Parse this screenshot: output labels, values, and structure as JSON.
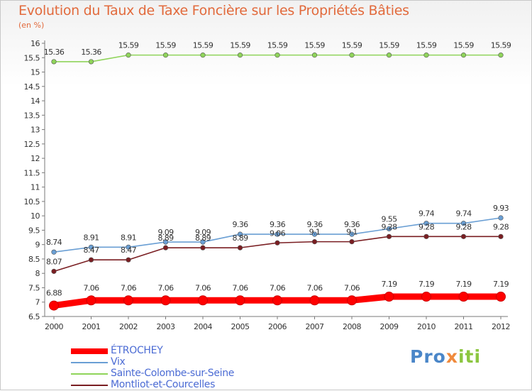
{
  "header": {
    "title": "Evolution du Taux de Taxe Foncière sur les Propriétés Bâties",
    "subtitle": "(en %)"
  },
  "logo": {
    "parts": [
      "Pro",
      "x",
      "iti"
    ]
  },
  "chart_data": {
    "type": "line",
    "x": [
      "2000",
      "2001",
      "2002",
      "2003",
      "2004",
      "2005",
      "2006",
      "2007",
      "2008",
      "2009",
      "2010",
      "2011",
      "2012"
    ],
    "ylim": [
      6.5,
      16
    ],
    "yticks": [
      6.5,
      7,
      7.5,
      8,
      8.5,
      9,
      9.5,
      10,
      10.5,
      11,
      11.5,
      12,
      12.5,
      13,
      13.5,
      14,
      14.5,
      15,
      15.5,
      16
    ],
    "grid": false,
    "legend_position": "bottom-left",
    "series": [
      {
        "name": "ÉTROCHEY",
        "color": "#ff0000",
        "values": [
          6.88,
          7.06,
          7.06,
          7.06,
          7.06,
          7.06,
          7.06,
          7.06,
          7.06,
          7.19,
          7.19,
          7.19,
          7.19
        ],
        "labels": [
          "6.88",
          "7.06",
          "7.06",
          "7.06",
          "7.06",
          "7.06",
          "7.06",
          "7.06",
          "7.06",
          "7.19",
          "7.19",
          "7.19",
          "7.19"
        ]
      },
      {
        "name": "Vix",
        "color": "#6a9fd4",
        "values": [
          8.74,
          8.91,
          8.91,
          9.09,
          9.09,
          9.36,
          9.36,
          9.36,
          9.36,
          9.55,
          9.74,
          9.74,
          9.93
        ],
        "labels": [
          "8.74",
          "8.91",
          "8.91",
          "9.09",
          "9.09",
          "9.36",
          "9.36",
          "9.36",
          "9.36",
          "9.55",
          "9.74",
          "9.74",
          "9.93"
        ]
      },
      {
        "name": "Sainte-Colombe-sur-Seine",
        "color": "#8fd45a",
        "values": [
          15.36,
          15.36,
          15.59,
          15.59,
          15.59,
          15.59,
          15.59,
          15.59,
          15.59,
          15.59,
          15.59,
          15.59,
          15.59
        ],
        "labels": [
          "15.36",
          "15.36",
          "15.59",
          "15.59",
          "15.59",
          "15.59",
          "15.59",
          "15.59",
          "15.59",
          "15.59",
          "15.59",
          "15.59",
          "15.59"
        ]
      },
      {
        "name": "Montliot-et-Courcelles",
        "color": "#7a1e22",
        "values": [
          8.07,
          8.47,
          8.47,
          8.89,
          8.89,
          8.89,
          9.06,
          9.1,
          9.1,
          9.28,
          9.28,
          9.28,
          9.28
        ],
        "labels": [
          "8.07",
          "8.47",
          "8.47",
          "8.89",
          "8.89",
          "8.89",
          "9.06",
          "9.1",
          "9.1",
          "9.28",
          "9.28",
          "9.28",
          "9.28"
        ]
      }
    ]
  }
}
